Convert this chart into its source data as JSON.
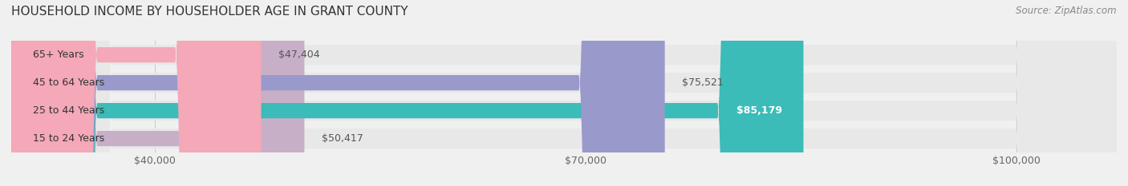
{
  "title": "HOUSEHOLD INCOME BY HOUSEHOLDER AGE IN GRANT COUNTY",
  "source": "Source: ZipAtlas.com",
  "categories": [
    "15 to 24 Years",
    "25 to 44 Years",
    "45 to 64 Years",
    "65+ Years"
  ],
  "values": [
    50417,
    85179,
    75521,
    47404
  ],
  "bar_colors": [
    "#c8afc8",
    "#3bbcb8",
    "#9999cc",
    "#f4a8b8"
  ],
  "bar_labels": [
    "$50,417",
    "$85,179",
    "$75,521",
    "$47,404"
  ],
  "label_inside": [
    false,
    true,
    false,
    false
  ],
  "xlim": [
    30000,
    107000
  ],
  "xticks": [
    40000,
    70000,
    100000
  ],
  "xticklabels": [
    "$40,000",
    "$70,000",
    "$100,000"
  ],
  "background_color": "#f0f0f0",
  "bar_bg_color": "#e8e8e8",
  "title_fontsize": 11,
  "source_fontsize": 8.5,
  "label_fontsize": 9,
  "tick_fontsize": 9,
  "category_fontsize": 9
}
